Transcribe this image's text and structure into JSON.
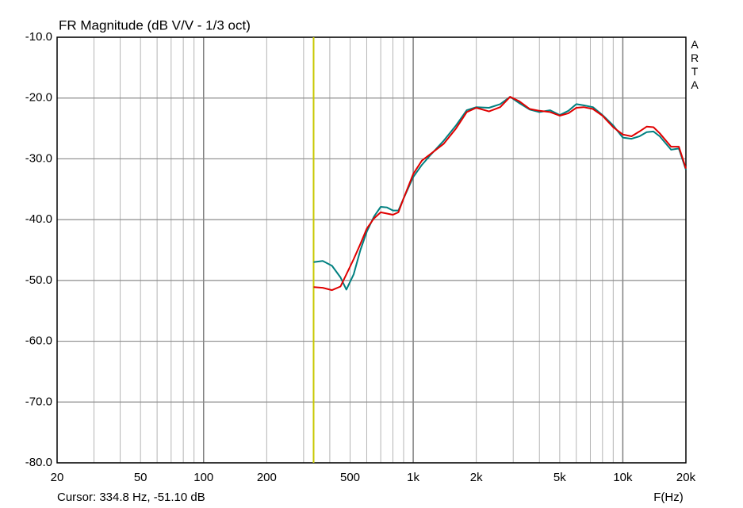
{
  "chart_data": {
    "type": "line",
    "title": "FR Magnitude (dB V/V - 1/3 oct)",
    "xlabel": "F(Hz)",
    "watermark": "ARTA",
    "log_x": true,
    "grid": true,
    "xlim": [
      20,
      20000
    ],
    "ylim": [
      -80,
      -10
    ],
    "xticks": [
      20,
      50,
      100,
      200,
      500,
      {
        "value": 1000,
        "label": "1k"
      },
      {
        "value": 2000,
        "label": "2k"
      },
      {
        "value": 5000,
        "label": "5k"
      },
      {
        "value": 10000,
        "label": "10k"
      },
      {
        "value": 20000,
        "label": "20k"
      }
    ],
    "x_minor_grid": [
      30,
      40,
      60,
      70,
      80,
      90,
      300,
      400,
      600,
      700,
      800,
      900,
      3000,
      4000,
      6000,
      7000,
      8000,
      9000
    ],
    "yticks": [
      {
        "value": -80,
        "label": "-80.0"
      },
      {
        "value": -70,
        "label": "-70.0"
      },
      {
        "value": -60,
        "label": "-60.0"
      },
      {
        "value": -50,
        "label": "-50.0"
      },
      {
        "value": -40,
        "label": "-40.0"
      },
      {
        "value": -30,
        "label": "-30.0"
      },
      {
        "value": -20,
        "label": "-20.0"
      },
      {
        "value": -10,
        "label": "-10.0"
      }
    ],
    "cursor": {
      "x": 334.8,
      "color": "#c8c800",
      "label": "Cursor: 334.8 Hz, -51.10 dB"
    },
    "x": [
      335,
      370,
      410,
      450,
      480,
      520,
      560,
      600,
      650,
      700,
      750,
      800,
      850,
      900,
      1000,
      1100,
      1200,
      1400,
      1600,
      1800,
      2000,
      2300,
      2600,
      2900,
      3200,
      3600,
      4000,
      4500,
      5000,
      5500,
      6000,
      6500,
      7200,
      8000,
      9000,
      10000,
      11000,
      12000,
      13000,
      14000,
      15000,
      17000,
      18500,
      20000
    ],
    "series": [
      {
        "color": "#008080",
        "values": [
          -47.0,
          -46.8,
          -47.6,
          -49.5,
          -51.5,
          -49,
          -45,
          -42,
          -39.5,
          -37.9,
          -38.0,
          -38.5,
          -38.5,
          -36.5,
          -33,
          -31,
          -29.5,
          -27,
          -24.5,
          -22,
          -21.5,
          -21.6,
          -21.0,
          -19.8,
          -20.8,
          -21.9,
          -22.3,
          -22.0,
          -22.8,
          -22.1,
          -21.0,
          -21.2,
          -21.5,
          -22.8,
          -24.5,
          -26.5,
          -26.7,
          -26.3,
          -25.6,
          -25.5,
          -26.3,
          -28.5,
          -28.3,
          -31.8
        ]
      },
      {
        "color": "#e00000",
        "values": [
          -51.1,
          -51.2,
          -51.6,
          -51.0,
          -49.0,
          -46.5,
          -44,
          -41.5,
          -39.8,
          -38.8,
          -39.0,
          -39.2,
          -38.8,
          -36.5,
          -32.5,
          -30.3,
          -29.3,
          -27.5,
          -25,
          -22.3,
          -21.6,
          -22.2,
          -21.5,
          -19.8,
          -20.5,
          -21.8,
          -22.1,
          -22.3,
          -22.9,
          -22.5,
          -21.6,
          -21.5,
          -21.8,
          -22.9,
          -24.8,
          -26.0,
          -26.3,
          -25.5,
          -24.7,
          -24.8,
          -25.8,
          -28.0,
          -28.0,
          -31.6
        ]
      }
    ]
  }
}
